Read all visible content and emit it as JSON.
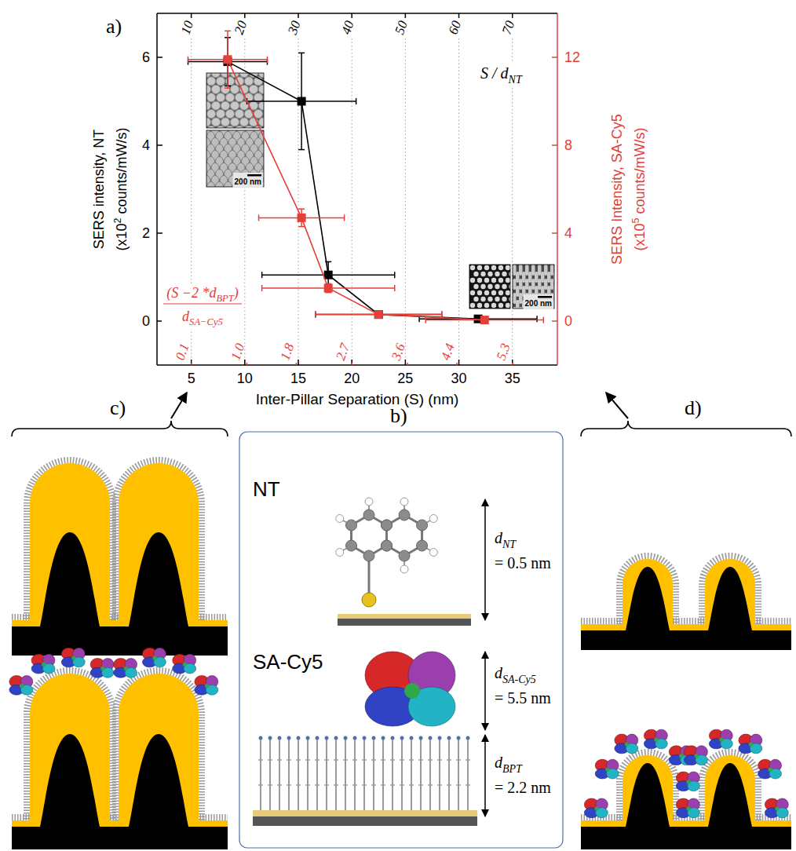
{
  "chart_data": {
    "type": "line",
    "panel_label": "a)",
    "x_label": "Inter-Pillar Separation (S) (nm)",
    "y_label": [
      "SERS intensity, NT",
      [
        "(x10",
        {
          "sup": "2"
        },
        " counts/mW/s)"
      ]
    ],
    "y2_label": [
      "SERS Intensity, SA-Cy5",
      [
        "(x10",
        {
          "sup": "5"
        },
        " counts/mW/s)"
      ]
    ],
    "x2_label": [
      "S / d",
      {
        "sub": "NT"
      }
    ],
    "x3_label": {
      "numerator": [
        "(S −2 *d",
        {
          "sub": "BPT"
        },
        ")"
      ],
      "denominator": [
        "d",
        {
          "sub": "SA−Cy5"
        }
      ]
    },
    "xlim": [
      1.8,
      39.2
    ],
    "xticks": [
      5,
      10,
      15,
      20,
      25,
      30,
      35
    ],
    "x2lim": [
      3.6,
      78.4
    ],
    "x2ticks": [
      10,
      20,
      30,
      40,
      50,
      60,
      70
    ],
    "x3lim": [
      -0.455,
      6.028
    ],
    "x3ticks": [
      0.1,
      {
        "value": 1,
        "label": "1.0"
      },
      1.8,
      2.7,
      3.6,
      4.4,
      5.3
    ],
    "ylim": [
      -1,
      7
    ],
    "yticks": [
      0,
      2,
      4,
      6
    ],
    "y2lim": [
      -2,
      14
    ],
    "y2ticks": [
      0,
      4,
      8,
      12
    ],
    "grid": true,
    "marker": "square",
    "line_style": "solid",
    "series": [
      {
        "color": "#000000",
        "x": [
          8.4,
          15.3,
          17.8,
          22.5,
          31.8
        ],
        "values": [
          5.9,
          5.0,
          1.05,
          0.15,
          0.05
        ],
        "x_error": [
          3.7,
          5.1,
          6.2,
          5.9,
          5.5
        ],
        "y_error": [
          0.55,
          1.1,
          0.3,
          0.05,
          0.05
        ]
      },
      {
        "color": "#e3403a",
        "axis": "y2",
        "x": [
          8.4,
          15.3,
          17.8,
          22.5,
          32.4
        ],
        "values": [
          11.9,
          4.7,
          1.5,
          0.3,
          0.05
        ],
        "x_error": [
          3.7,
          4.0,
          6.2,
          5.9,
          5.5
        ],
        "y_error": [
          1.3,
          0.4,
          0.2,
          0.1,
          0.1
        ]
      }
    ],
    "insets": [
      {
        "scale_label": "200 nm"
      },
      {
        "scale_label": "200 nm"
      }
    ]
  },
  "diagram": {
    "panel_c": {
      "label": "c)"
    },
    "panel_b": {
      "label": "b)",
      "molecules": [
        {
          "name": "NT",
          "dimensions": [
            {
              "symbol": [
                "d",
                {
                  "sub": "NT"
                }
              ],
              "value": "= 0.5 nm"
            }
          ]
        },
        {
          "name": "SA-Cy5",
          "dimensions": [
            {
              "symbol": [
                "d",
                {
                  "sub": "SA-Cy5"
                }
              ],
              "value": "= 5.5 nm"
            },
            {
              "symbol": [
                "d",
                {
                  "sub": "BPT"
                }
              ],
              "value": "= 2.2 nm"
            }
          ]
        }
      ]
    },
    "panel_d": {
      "label": "d)"
    }
  }
}
